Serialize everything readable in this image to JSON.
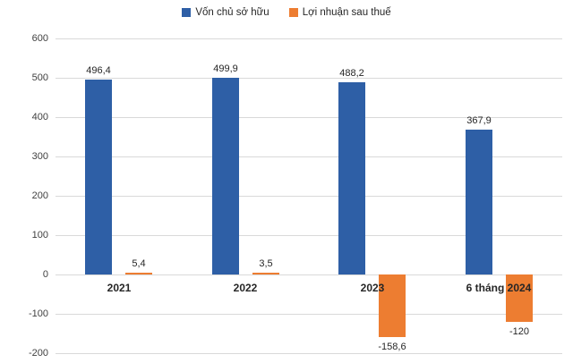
{
  "chart_data": {
    "type": "bar",
    "title": "",
    "categories": [
      "2021",
      "2022",
      "2023",
      "6 tháng 2024"
    ],
    "series": [
      {
        "name": "Vốn chủ sở hữu",
        "color": "#2e5fa6",
        "values": [
          496.4,
          499.9,
          488.2,
          367.9
        ],
        "labels": [
          "496,4",
          "499,9",
          "488,2",
          "367,9"
        ]
      },
      {
        "name": "Lợi nhuận sau thuế",
        "color": "#ed7d31",
        "values": [
          5.4,
          3.5,
          -158.6,
          -120
        ],
        "labels": [
          "5,4",
          "3,5",
          "-158,6",
          "-120"
        ]
      }
    ],
    "xlabel": "",
    "ylabel": "",
    "ylim": [
      -200,
      600
    ],
    "yticks": [
      600,
      500,
      400,
      300,
      200,
      100,
      0,
      -100,
      -200
    ],
    "grid": true,
    "legend_position": "top",
    "gridline_color": "#d9d9d9",
    "tick_label_color": "#404040"
  }
}
